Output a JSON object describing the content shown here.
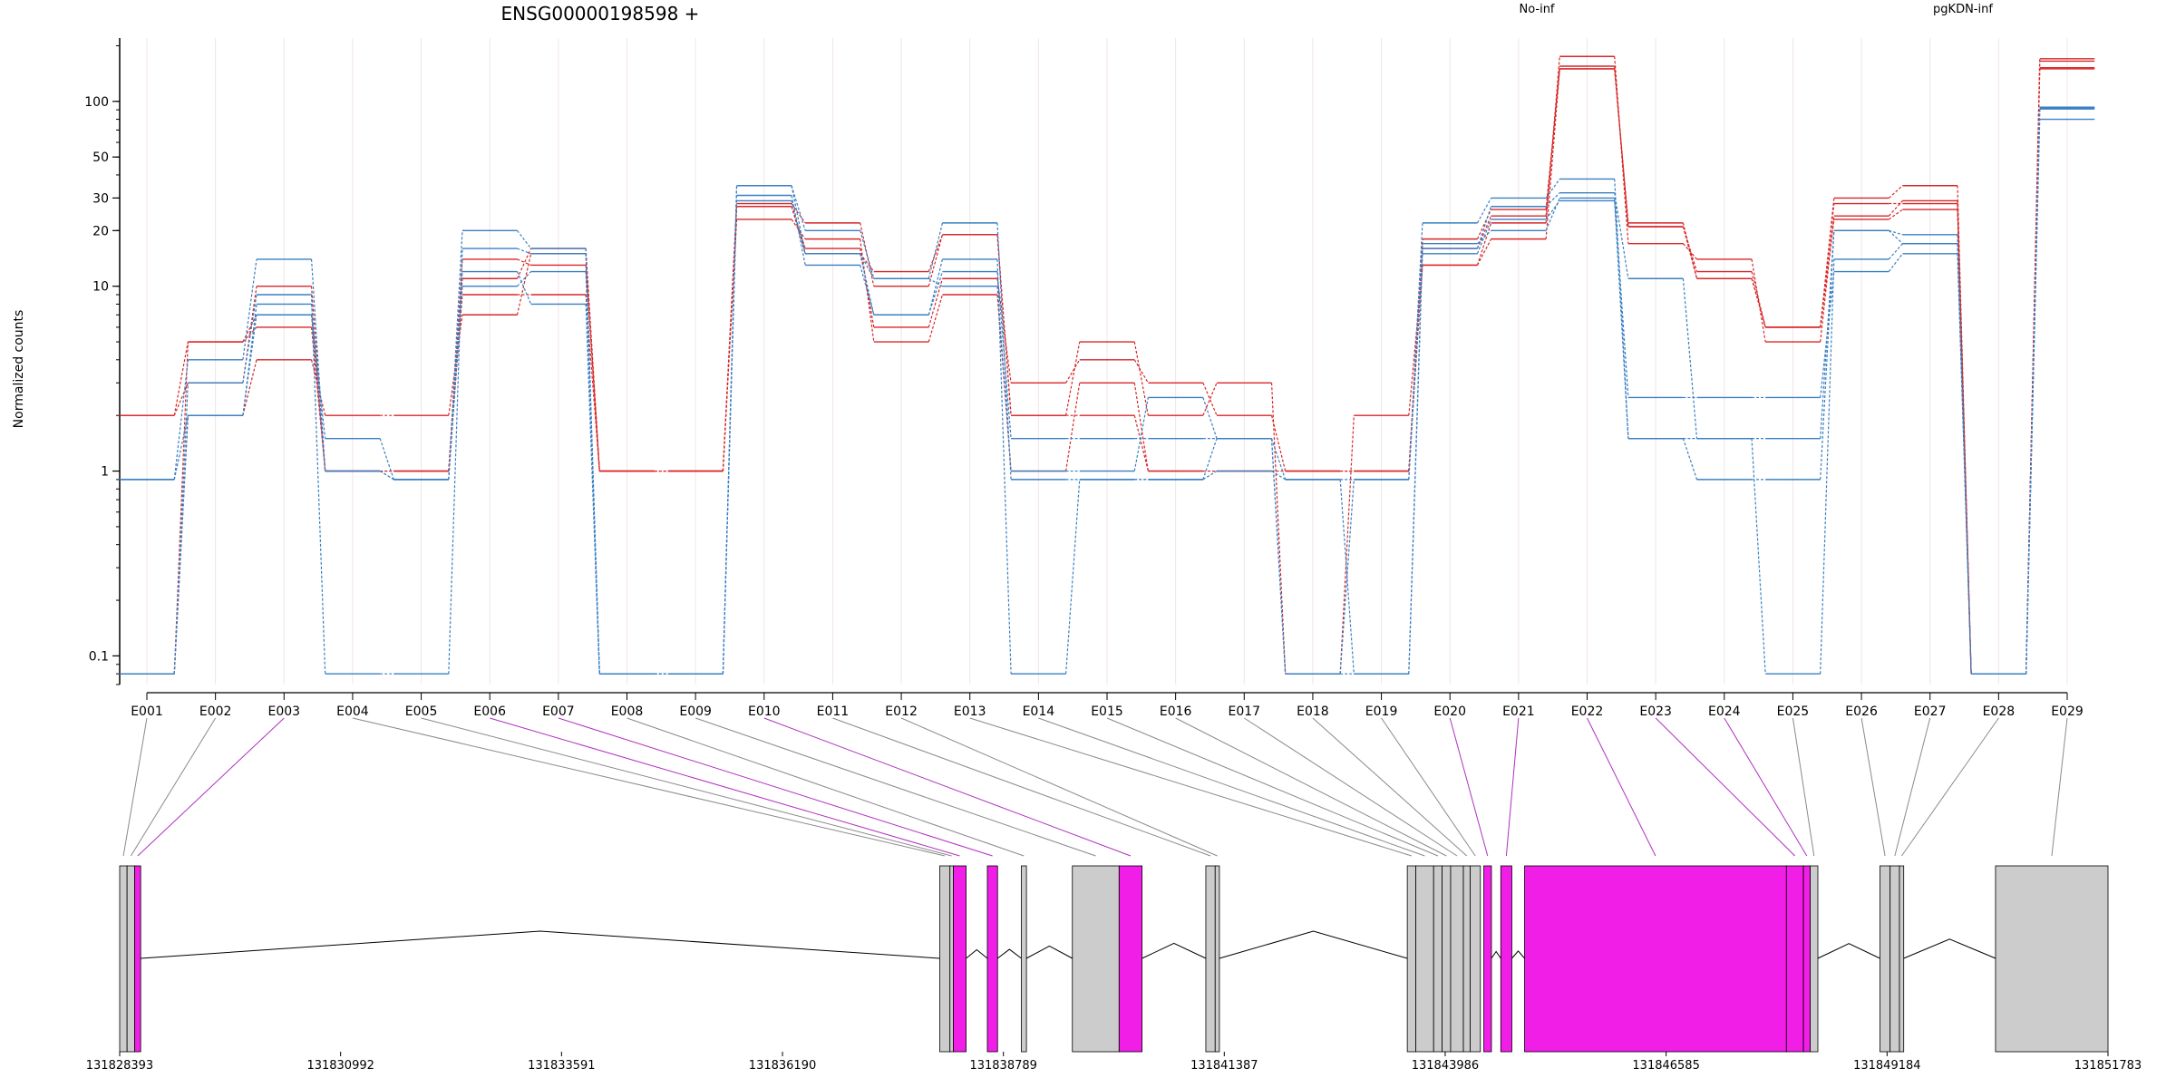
{
  "chart_data": [
    {
      "type": "line",
      "title": "ENSG00000198598 +",
      "ylabel": "Normalized counts",
      "xlabel": "",
      "yscale": "log",
      "ylim": [
        0.07,
        220
      ],
      "yticks": [
        "0.1",
        "1",
        "10",
        "20",
        "30",
        "50",
        "100"
      ],
      "yticks_values": [
        0.1,
        1,
        10,
        20,
        30,
        50,
        100
      ],
      "categories": [
        "E001",
        "E002",
        "E003",
        "E004",
        "E005",
        "E006",
        "E007",
        "E008",
        "E009",
        "E010",
        "E011",
        "E012",
        "E013",
        "E014",
        "E015",
        "E016",
        "E017",
        "E018",
        "E019",
        "E020",
        "E021",
        "E022",
        "E023",
        "E024",
        "E025",
        "E026",
        "E027",
        "E028",
        "E029"
      ],
      "legend": [
        "No-inf",
        "pgKDN-inf"
      ],
      "colors": {
        "No-inf": "#d62728",
        "pgKDN-inf": "#3a7fc1"
      },
      "series": [
        {
          "group": "No-inf",
          "values": [
            2,
            5,
            6,
            1,
            1,
            9,
            9,
            1,
            1,
            23,
            18,
            5,
            9,
            1,
            3,
            1,
            1,
            1,
            1,
            13,
            18,
            150,
            22,
            11,
            6,
            23,
            26,
            0.08,
            150
          ]
        },
        {
          "group": "No-inf",
          "values": [
            2,
            3,
            10,
            1,
            1,
            14,
            13,
            1,
            1,
            27,
            16,
            6,
            11,
            3,
            4,
            3,
            2,
            1,
            1,
            16,
            24,
            155,
            21,
            12,
            6,
            28,
            28,
            0.08,
            152
          ]
        },
        {
          "group": "No-inf",
          "values": [
            0.08,
            5,
            7,
            1,
            1,
            11,
            16,
            1,
            1,
            28,
            22,
            10,
            19,
            2,
            5,
            2,
            3,
            0.08,
            2,
            13,
            22,
            175,
            17,
            14,
            5,
            24,
            29,
            0.08,
            170
          ]
        },
        {
          "group": "No-inf",
          "values": [
            0.08,
            2,
            4,
            2,
            2,
            7,
            15,
            1,
            1,
            27,
            15,
            12,
            19,
            2,
            2,
            1,
            1,
            1,
            1,
            18,
            26,
            150,
            21,
            11,
            6,
            30,
            35,
            0.08,
            165
          ]
        },
        {
          "group": "pgKDN-inf",
          "values": [
            0.9,
            4,
            14,
            1,
            0.9,
            20,
            16,
            0.08,
            0.08,
            35,
            20,
            11,
            22,
            0.9,
            0.9,
            0.9,
            1,
            0.9,
            0.9,
            22,
            30,
            38,
            1.5,
            0.9,
            0.9,
            20,
            19,
            0.08,
            80
          ]
        },
        {
          "group": "pgKDN-inf",
          "values": [
            0.08,
            3,
            9,
            0.08,
            0.08,
            16,
            15,
            0.08,
            0.08,
            31,
            13,
            7,
            14,
            0.08,
            0.9,
            0.9,
            1.5,
            0.08,
            0.9,
            16,
            27,
            32,
            11,
            1.5,
            0.08,
            14,
            17,
            0.08,
            92
          ]
        },
        {
          "group": "pgKDN-inf",
          "values": [
            0.08,
            2,
            8,
            1,
            0.9,
            12,
            8,
            0.08,
            0.08,
            35,
            15,
            11,
            10,
            1,
            1,
            2.5,
            1.5,
            0.08,
            0.08,
            17,
            20,
            30,
            2.5,
            2.5,
            2.5,
            12,
            15,
            0.08,
            91
          ]
        },
        {
          "group": "pgKDN-inf",
          "values": [
            0.9,
            2,
            7,
            1.5,
            0.9,
            10,
            12,
            0.08,
            0.08,
            29,
            15,
            7,
            12,
            1.5,
            1.5,
            1.5,
            1.5,
            0.9,
            0.08,
            15,
            23,
            29,
            1.5,
            1.5,
            1.5,
            20,
            17,
            0.08,
            93
          ]
        }
      ]
    },
    {
      "type": "gene-model",
      "genomic_ticks": [
        "131828393",
        "131830992",
        "131833591",
        "131836190",
        "131838789",
        "131841387",
        "131843986",
        "131846585",
        "131849184",
        "131851783"
      ],
      "genomic_range": [
        131828393,
        131851783
      ],
      "tick_positions": [
        131828393,
        131830992,
        131833591,
        131836190,
        131838789,
        131841387,
        131843986,
        131846585,
        131849184,
        131851783
      ],
      "exons": [
        {
          "id": "E001",
          "start": 131828393,
          "end": 131828480,
          "status": "not-significant"
        },
        {
          "id": "E002",
          "start": 131828480,
          "end": 131828570,
          "status": "not-significant"
        },
        {
          "id": "E003",
          "start": 131828570,
          "end": 131828640,
          "status": "significant"
        },
        {
          "id": "E004",
          "start": 131838040,
          "end": 131838160,
          "status": "not-significant"
        },
        {
          "id": "E005",
          "start": 131838160,
          "end": 131838200,
          "status": "not-significant"
        },
        {
          "id": "E006",
          "start": 131838200,
          "end": 131838350,
          "status": "significant"
        },
        {
          "id": "E007",
          "start": 131838600,
          "end": 131838720,
          "status": "significant"
        },
        {
          "id": "E008",
          "start": 131839000,
          "end": 131839060,
          "status": "not-significant"
        },
        {
          "id": "E009",
          "start": 131839600,
          "end": 131840150,
          "status": "not-significant"
        },
        {
          "id": "E010",
          "start": 131840150,
          "end": 131840420,
          "status": "significant"
        },
        {
          "id": "E011",
          "start": 131841170,
          "end": 131841280,
          "status": "not-significant"
        },
        {
          "id": "E012",
          "start": 131841280,
          "end": 131841330,
          "status": "not-significant"
        },
        {
          "id": "E013",
          "start": 131843540,
          "end": 131843640,
          "status": "not-significant"
        },
        {
          "id": "E014",
          "start": 131843640,
          "end": 131843850,
          "status": "not-significant"
        },
        {
          "id": "E015",
          "start": 131843850,
          "end": 131843950,
          "status": "not-significant"
        },
        {
          "id": "E016",
          "start": 131843950,
          "end": 131844050,
          "status": "not-significant"
        },
        {
          "id": "E017",
          "start": 131844050,
          "end": 131844200,
          "status": "not-significant"
        },
        {
          "id": "E018",
          "start": 131844200,
          "end": 131844280,
          "status": "not-significant"
        },
        {
          "id": "E019",
          "start": 131844280,
          "end": 131844400,
          "status": "not-significant"
        },
        {
          "id": "E020",
          "start": 131844440,
          "end": 131844530,
          "status": "significant"
        },
        {
          "id": "E021",
          "start": 131844640,
          "end": 131844770,
          "status": "significant"
        },
        {
          "id": "E022",
          "start": 131844920,
          "end": 131848000,
          "status": "significant"
        },
        {
          "id": "E023",
          "start": 131848000,
          "end": 131848200,
          "status": "significant"
        },
        {
          "id": "E024",
          "start": 131848200,
          "end": 131848280,
          "status": "significant"
        },
        {
          "id": "E025",
          "start": 131848280,
          "end": 131848370,
          "status": "not-significant"
        },
        {
          "id": "E026",
          "start": 131849100,
          "end": 131849220,
          "status": "not-significant"
        },
        {
          "id": "E027",
          "start": 131849220,
          "end": 131849330,
          "status": "not-significant"
        },
        {
          "id": "E028",
          "start": 131849330,
          "end": 131849380,
          "status": "not-significant"
        },
        {
          "id": "E029",
          "start": 131850460,
          "end": 131851783,
          "status": "not-significant"
        }
      ],
      "colors": {
        "significant": "#f01ee6",
        "not-significant": "#cccccc",
        "intron": "#000000"
      }
    }
  ]
}
